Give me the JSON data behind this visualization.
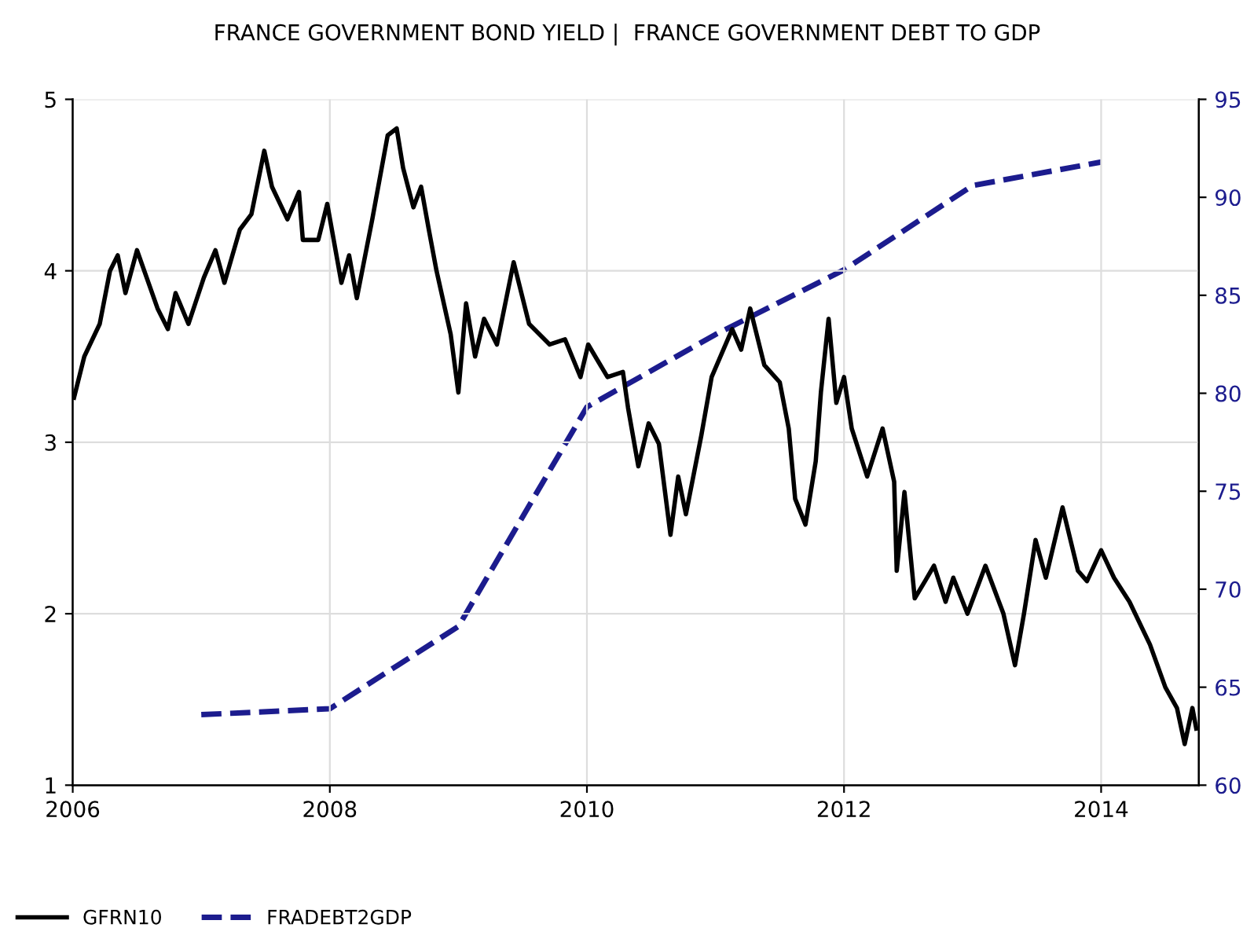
{
  "chart_data": {
    "type": "line",
    "title": "FRANCE GOVERNMENT BOND YIELD |  FRANCE GOVERNMENT DEBT TO GDP",
    "xlim": [
      2006,
      2014.76
    ],
    "xticks": [
      2006,
      2008,
      2010,
      2012,
      2014
    ],
    "ylim": [
      1,
      5
    ],
    "yticks": [
      1,
      2,
      3,
      4,
      5
    ],
    "y2lim": [
      60,
      95
    ],
    "y2ticks": [
      60,
      65,
      70,
      75,
      80,
      85,
      90,
      95
    ],
    "grid": true,
    "legend": "bottom left",
    "series": [
      {
        "name": "GFRN10",
        "color": "#000000",
        "line_style": "solid",
        "x": [
          2006.01,
          2006.09,
          2006.21,
          2006.29,
          2006.35,
          2006.41,
          2006.5,
          2006.66,
          2006.74,
          2006.8,
          2006.9,
          2007.02,
          2007.11,
          2007.18,
          2007.3,
          2007.39,
          2007.49,
          2007.55,
          2007.67,
          2007.76,
          2007.79,
          2007.91,
          2007.98,
          2008.09,
          2008.15,
          2008.21,
          2008.33,
          2008.45,
          2008.52,
          2008.57,
          2008.65,
          2008.71,
          2008.77,
          2008.83,
          2008.94,
          2009.0,
          2009.06,
          2009.13,
          2009.2,
          2009.3,
          2009.43,
          2009.55,
          2009.71,
          2009.83,
          2009.95,
          2010.01,
          2010.16,
          2010.28,
          2010.32,
          2010.4,
          2010.48,
          2010.56,
          2010.65,
          2010.71,
          2010.77,
          2010.89,
          2010.97,
          2011.13,
          2011.2,
          2011.27,
          2011.38,
          2011.5,
          2011.57,
          2011.62,
          2011.7,
          2011.78,
          2011.82,
          2011.88,
          2011.94,
          2012.0,
          2012.06,
          2012.18,
          2012.3,
          2012.39,
          2012.41,
          2012.47,
          2012.55,
          2012.63,
          2012.7,
          2012.79,
          2012.85,
          2012.96,
          2013.1,
          2013.24,
          2013.33,
          2013.4,
          2013.49,
          2013.57,
          2013.7,
          2013.82,
          2013.89,
          2014.0,
          2014.1,
          2014.22,
          2014.38,
          2014.5,
          2014.59,
          2014.65,
          2014.71,
          2014.74
        ],
        "values": [
          3.26,
          3.5,
          3.69,
          4.0,
          4.09,
          3.87,
          4.12,
          3.78,
          3.66,
          3.87,
          3.69,
          3.96,
          4.12,
          3.93,
          4.24,
          4.33,
          4.7,
          4.49,
          4.3,
          4.46,
          4.18,
          4.18,
          4.39,
          3.93,
          4.09,
          3.84,
          4.3,
          4.79,
          4.83,
          4.6,
          4.37,
          4.49,
          4.24,
          4.0,
          3.63,
          3.29,
          3.81,
          3.5,
          3.72,
          3.57,
          4.05,
          3.69,
          3.57,
          3.6,
          3.38,
          3.57,
          3.38,
          3.41,
          3.2,
          2.86,
          3.11,
          2.99,
          2.46,
          2.8,
          2.58,
          3.04,
          3.38,
          3.66,
          3.54,
          3.78,
          3.45,
          3.35,
          3.08,
          2.67,
          2.52,
          2.89,
          3.29,
          3.72,
          3.23,
          3.38,
          3.08,
          2.8,
          3.08,
          2.77,
          2.25,
          2.71,
          2.09,
          2.19,
          2.28,
          2.07,
          2.21,
          2.0,
          2.28,
          2.0,
          1.7,
          2.0,
          2.43,
          2.21,
          2.62,
          2.25,
          2.19,
          2.37,
          2.21,
          2.07,
          1.82,
          1.57,
          1.45,
          1.24,
          1.45,
          1.33
        ]
      },
      {
        "name": "FRADEBT2GDP",
        "color": "#1c1c8e",
        "axis": "y2",
        "line_style": "dashed",
        "x": [
          2007,
          2008,
          2009,
          2010,
          2011,
          2012,
          2013,
          2014
        ],
        "values": [
          63.6,
          63.9,
          68.1,
          79.3,
          83.0,
          86.3,
          90.6,
          91.8
        ]
      }
    ]
  }
}
